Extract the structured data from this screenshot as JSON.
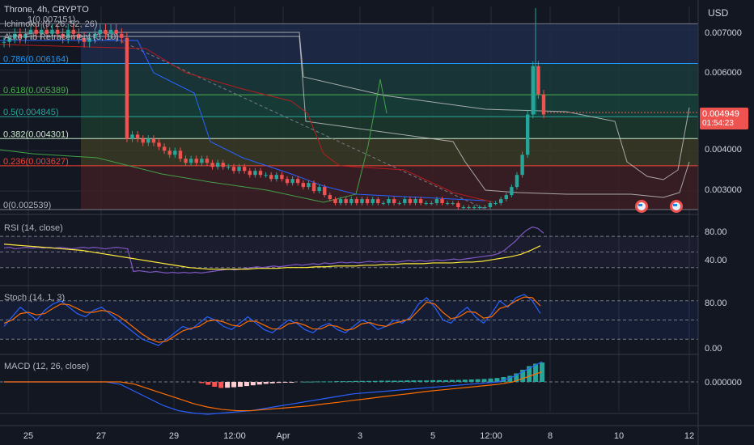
{
  "header": {
    "symbol": "Throne, 4h, CRYPTO",
    "indicator_1": "Ichimoku (9, 26, 52, 26)",
    "indicator_2": "Auto Fib Retracement (3, 10)",
    "currency": "USD"
  },
  "price_tag": {
    "value": "0.004949",
    "countdown": "01:54:23"
  },
  "colors": {
    "background": "#131722",
    "up": "#26a69a",
    "down": "#ef5350",
    "grid": "#2a2e39",
    "text": "#d1d4dc",
    "rsi_line": "#7e57c2",
    "rsi_ma": "#ffeb3b",
    "macd_line": "#2962ff",
    "signal_line": "#ff6d00"
  },
  "chart_data": [
    {
      "type": "candlestick",
      "title": "Throne, 4h, CRYPTO",
      "y_ticks": [
        "0.007000",
        "0.006000",
        "0.004000",
        "0.003000"
      ],
      "x_ticks": [
        "25",
        "27",
        "29",
        "12:00",
        "Apr",
        "3",
        "5",
        "12:00",
        "8",
        "10",
        "12"
      ],
      "fib_levels": [
        {
          "label": "1(0.007151)",
          "value": 0.007151,
          "color": "#787b86"
        },
        {
          "label": "0.786(0.006164)",
          "value": 0.006164,
          "color": "#2196f3"
        },
        {
          "label": "0.618(0.005389)",
          "value": 0.005389,
          "color": "#4caf50"
        },
        {
          "label": "0.5(0.004845)",
          "value": 0.004845,
          "color": "#26a69a"
        },
        {
          "label": "0.382(0.004301)",
          "value": 0.004301,
          "color": "#c8e6c9"
        },
        {
          "label": "0.236(0.003627)",
          "value": 0.003627,
          "color": "#f44336"
        },
        {
          "label": "0(0.002539)",
          "value": 0.002539,
          "color": "#787b86"
        }
      ],
      "candles_close": [
        0.0067,
        0.0068,
        0.0069,
        0.0068,
        0.0069,
        0.007,
        0.0069,
        0.007,
        0.0069,
        0.007,
        0.0069,
        0.0068,
        0.007,
        0.0069,
        0.0068,
        0.0067,
        0.0068,
        0.0069,
        0.007,
        0.0069,
        0.007,
        0.0069,
        0.0068,
        0.0043,
        0.0044,
        0.0043,
        0.0042,
        0.0043,
        0.0042,
        0.0041,
        0.004,
        0.0039,
        0.004,
        0.0038,
        0.0037,
        0.0038,
        0.0037,
        0.0038,
        0.0037,
        0.0036,
        0.0037,
        0.0036,
        0.0036,
        0.0035,
        0.0036,
        0.0035,
        0.0034,
        0.0035,
        0.0034,
        0.0034,
        0.0033,
        0.0034,
        0.0033,
        0.0032,
        0.0033,
        0.0032,
        0.0031,
        0.0032,
        0.003,
        0.0031,
        0.0029,
        0.0028,
        0.0027,
        0.0028,
        0.0027,
        0.0028,
        0.0027,
        0.0028,
        0.0027,
        0.0028,
        0.0027,
        0.0027,
        0.0028,
        0.0027,
        0.0027,
        0.0028,
        0.0027,
        0.0028,
        0.0027,
        0.0027,
        0.0027,
        0.0028,
        0.0027,
        0.0027,
        0.0027,
        0.0026,
        0.0026,
        0.0026,
        0.0026,
        0.0026,
        0.0026,
        0.0027,
        0.0027,
        0.0028,
        0.0029,
        0.0031,
        0.0034,
        0.0039,
        0.0049,
        0.0061,
        0.0054,
        0.0049
      ],
      "current_price": 0.004949
    },
    {
      "type": "line",
      "title": "RSI (14, close)",
      "y_ticks": [
        "80.00",
        "40.00"
      ],
      "rsi": [
        55,
        56,
        54,
        55,
        56,
        55,
        56,
        55,
        56,
        55,
        56,
        55,
        54,
        55,
        56,
        55,
        56,
        55,
        54,
        55,
        56,
        55,
        54,
        25,
        26,
        25,
        24,
        25,
        24,
        23,
        24,
        23,
        24,
        23,
        24,
        23,
        24,
        25,
        26,
        27,
        28,
        27,
        28,
        29,
        30,
        31,
        30,
        31,
        32,
        31,
        32,
        33,
        34,
        33,
        34,
        35,
        34,
        36,
        35,
        36,
        37,
        36,
        37,
        36,
        37,
        38,
        37,
        38,
        37,
        38,
        37,
        38,
        39,
        38,
        39,
        38,
        39,
        40,
        39,
        40,
        41,
        40,
        41,
        42,
        43,
        44,
        45,
        46,
        48,
        52,
        58,
        64,
        72,
        78,
        82,
        80,
        74
      ],
      "rsi_ma": [
        60,
        59,
        58,
        57,
        56,
        55,
        54,
        53,
        52,
        50,
        48,
        46,
        44,
        42,
        40,
        38,
        36,
        34,
        32,
        30,
        29,
        28,
        28,
        28,
        28,
        28,
        29,
        29,
        29,
        30,
        30,
        30,
        31,
        31,
        32,
        32,
        32,
        33,
        33,
        34,
        34,
        35,
        35,
        35,
        36,
        36,
        36,
        37,
        37,
        38,
        40,
        42,
        44,
        47,
        52,
        58
      ]
    },
    {
      "type": "line",
      "title": "Stoch (14, 1, 3)",
      "y_ticks": [
        "80.00",
        "0.00"
      ],
      "k": [
        40,
        55,
        70,
        60,
        50,
        65,
        75,
        80,
        70,
        60,
        55,
        65,
        70,
        60,
        50,
        40,
        30,
        20,
        15,
        10,
        20,
        30,
        40,
        35,
        45,
        55,
        50,
        40,
        35,
        45,
        55,
        45,
        35,
        30,
        40,
        50,
        45,
        35,
        30,
        40,
        45,
        35,
        30,
        40,
        50,
        45,
        35,
        40,
        50,
        45,
        55,
        75,
        85,
        70,
        50,
        45,
        60,
        70,
        55,
        45,
        60,
        80,
        70,
        85,
        90,
        80,
        60
      ],
      "d": [
        45,
        50,
        60,
        62,
        58,
        60,
        68,
        75,
        74,
        68,
        62,
        62,
        65,
        63,
        57,
        48,
        38,
        28,
        20,
        15,
        17,
        25,
        33,
        37,
        40,
        48,
        50,
        47,
        42,
        40,
        48,
        48,
        42,
        36,
        36,
        44,
        46,
        42,
        36,
        36,
        42,
        40,
        34,
        36,
        44,
        46,
        42,
        40,
        45,
        48,
        52,
        65,
        78,
        75,
        62,
        52,
        55,
        63,
        62,
        53,
        55,
        68,
        72,
        80,
        86,
        85,
        72
      ]
    },
    {
      "type": "bar",
      "title": "MACD (12, 26, close)",
      "y_ticks": [
        "0.000000"
      ],
      "histogram": [
        0,
        0,
        0,
        0,
        0,
        0,
        0,
        0,
        0,
        0,
        -5e-05,
        -0.00012,
        -0.0002,
        -0.00025,
        -0.00024,
        -0.00022,
        -0.0002,
        -0.00017,
        -0.00014,
        -0.00011,
        -8e-05,
        -6e-05,
        -4e-05,
        -2e-05,
        -1e-05,
        0,
        1e-05,
        1e-05,
        2e-05,
        2e-05,
        2e-05,
        3e-05,
        3e-05,
        3e-05,
        4e-05,
        4e-05,
        4e-05,
        4e-05,
        5e-05,
        5e-05,
        5e-05,
        5e-05,
        6e-05,
        6e-05,
        6e-05,
        6e-05,
        7e-05,
        7e-05,
        7e-05,
        8e-05,
        8e-05,
        9e-05,
        0.0001,
        0.00011,
        0.00012,
        0.00014,
        0.00016,
        0.0002,
        0.00025,
        0.00035,
        0.0005,
        0.00065,
        0.00075,
        0.0008
      ],
      "macd_line": [
        0,
        0,
        0,
        0,
        0,
        0,
        0,
        0,
        -0.0001,
        -0.0004,
        -0.0007,
        -0.001,
        -0.0012,
        -0.0013,
        -0.00135,
        -0.0013,
        -0.00125,
        -0.0012,
        -0.0011,
        -0.001,
        -0.0009,
        -0.0008,
        -0.0007,
        -0.0006,
        -0.0005,
        -0.00045,
        -0.0004,
        -0.00035,
        -0.0003,
        -0.00025,
        -0.0002,
        -0.00015,
        -0.0001,
        -5e-05,
        0,
        0.0002,
        0.0005,
        0.0008
      ],
      "signal_line": [
        0,
        0,
        0,
        0,
        0,
        0,
        0,
        0,
        0,
        -0.0001,
        -0.0003,
        -0.0005,
        -0.0007,
        -0.0009,
        -0.00105,
        -0.00115,
        -0.0012,
        -0.0012,
        -0.00115,
        -0.0011,
        -0.00105,
        -0.001,
        -0.00092,
        -0.00085,
        -0.00077,
        -0.0007,
        -0.00062,
        -0.00055,
        -0.00048,
        -0.0004,
        -0.00034,
        -0.00028,
        -0.00022,
        -0.00016,
        -0.0001,
        0,
        0.0002,
        0.0004
      ]
    }
  ]
}
